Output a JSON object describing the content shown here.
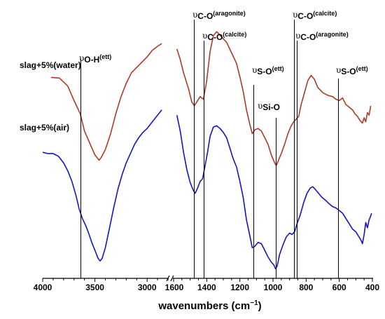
{
  "chart_data": {
    "type": "line",
    "title": "",
    "xlabel": "wavenumbers (cm⁻¹)",
    "xlabel_base": "wavenumbers (cm",
    "xlabel_exp": "−1",
    "xlabel_close": ")",
    "ylabel": "",
    "x_axis": {
      "reversed": true,
      "broken": true,
      "segments": [
        {
          "xlim": [
            4000,
            2800
          ],
          "ticks": [
            "4000",
            "3500",
            "3000"
          ]
        },
        {
          "xlim": [
            1600,
            400
          ],
          "ticks": [
            "1600",
            "1400",
            "1200",
            "1000",
            "800",
            "600",
            "400"
          ]
        }
      ]
    },
    "y_axis": {
      "shown": false,
      "units": "arbitrary (offset)"
    },
    "grid": false,
    "legend": "none",
    "series": [
      {
        "name": "slag+5%(water)",
        "color": "#b03a26",
        "points": [
          [
            3920,
            -0.55
          ],
          [
            3840,
            -0.6
          ],
          [
            3760,
            -1.2
          ],
          [
            3700,
            -2.3
          ],
          [
            3640,
            -3.3
          ],
          [
            3600,
            -4.6
          ],
          [
            3550,
            -5.5
          ],
          [
            3500,
            -6.4
          ],
          [
            3460,
            -6.8
          ],
          [
            3440,
            -6.6
          ],
          [
            3400,
            -6.0
          ],
          [
            3350,
            -4.8
          ],
          [
            3300,
            -3.3
          ],
          [
            3250,
            -2.0
          ],
          [
            3200,
            -1.0
          ],
          [
            3150,
            -0.2
          ],
          [
            3100,
            0.2
          ],
          [
            3050,
            0.6
          ],
          [
            3000,
            1.0
          ],
          [
            2950,
            1.5
          ],
          [
            2900,
            1.8
          ],
          [
            2860,
            2.0
          ],
          [
            1580,
            1.6
          ],
          [
            1560,
            0.8
          ],
          [
            1540,
            -0.2
          ],
          [
            1510,
            -1.4
          ],
          [
            1490,
            -2.4
          ],
          [
            1475,
            -2.7
          ],
          [
            1460,
            -2.4
          ],
          [
            1440,
            -2.0
          ],
          [
            1420,
            -2.2
          ],
          [
            1400,
            -0.8
          ],
          [
            1380,
            1.4
          ],
          [
            1360,
            2.6
          ],
          [
            1340,
            2.9
          ],
          [
            1310,
            2.5
          ],
          [
            1280,
            2.1
          ],
          [
            1250,
            1.3
          ],
          [
            1220,
            0.5
          ],
          [
            1200,
            -0.5
          ],
          [
            1180,
            -1.6
          ],
          [
            1160,
            -3.0
          ],
          [
            1140,
            -4.1
          ],
          [
            1125,
            -4.8
          ],
          [
            1110,
            -4.5
          ],
          [
            1090,
            -4.4
          ],
          [
            1070,
            -4.6
          ],
          [
            1050,
            -5.1
          ],
          [
            1030,
            -5.6
          ],
          [
            1010,
            -6.4
          ],
          [
            990,
            -7.0
          ],
          [
            980,
            -7.2
          ],
          [
            970,
            -6.9
          ],
          [
            950,
            -6.3
          ],
          [
            930,
            -5.6
          ],
          [
            910,
            -4.8
          ],
          [
            890,
            -4.2
          ],
          [
            875,
            -3.9
          ],
          [
            860,
            -3.7
          ],
          [
            845,
            -3.5
          ],
          [
            830,
            -2.6
          ],
          [
            810,
            -1.7
          ],
          [
            790,
            -0.8
          ],
          [
            770,
            -0.4
          ],
          [
            750,
            -0.7
          ],
          [
            730,
            -1.3
          ],
          [
            700,
            -1.7
          ],
          [
            670,
            -1.9
          ],
          [
            640,
            -2.0
          ],
          [
            620,
            -2.2
          ],
          [
            600,
            -2.3
          ],
          [
            580,
            -2.1
          ],
          [
            560,
            -2.6
          ],
          [
            540,
            -2.8
          ],
          [
            520,
            -3.0
          ],
          [
            505,
            -3.3
          ],
          [
            490,
            -3.5
          ],
          [
            475,
            -3.8
          ],
          [
            460,
            -4.0
          ],
          [
            450,
            -3.6
          ],
          [
            440,
            -3.9
          ],
          [
            430,
            -3.2
          ],
          [
            420,
            -3.4
          ],
          [
            410,
            -2.7
          ]
        ]
      },
      {
        "name": "slag+5%(air)",
        "color": "#1414c8",
        "points": [
          [
            4000,
            -6.2
          ],
          [
            3950,
            -6.3
          ],
          [
            3900,
            -6.3
          ],
          [
            3850,
            -6.5
          ],
          [
            3800,
            -7.0
          ],
          [
            3760,
            -7.6
          ],
          [
            3720,
            -8.4
          ],
          [
            3680,
            -9.5
          ],
          [
            3650,
            -10.5
          ],
          [
            3620,
            -11.2
          ],
          [
            3590,
            -11.7
          ],
          [
            3560,
            -12.3
          ],
          [
            3530,
            -13.0
          ],
          [
            3500,
            -13.6
          ],
          [
            3470,
            -14.2
          ],
          [
            3450,
            -14.4
          ],
          [
            3430,
            -14.2
          ],
          [
            3400,
            -13.4
          ],
          [
            3360,
            -11.9
          ],
          [
            3320,
            -10.4
          ],
          [
            3280,
            -9.0
          ],
          [
            3240,
            -7.9
          ],
          [
            3200,
            -7.0
          ],
          [
            3160,
            -6.3
          ],
          [
            3120,
            -5.6
          ],
          [
            3080,
            -5.1
          ],
          [
            3040,
            -4.7
          ],
          [
            3000,
            -4.4
          ],
          [
            2960,
            -4.0
          ],
          [
            2920,
            -3.6
          ],
          [
            2880,
            -3.2
          ],
          [
            2860,
            -3.0
          ],
          [
            1580,
            -3.4
          ],
          [
            1560,
            -4.6
          ],
          [
            1540,
            -6.2
          ],
          [
            1520,
            -7.5
          ],
          [
            1500,
            -8.5
          ],
          [
            1480,
            -9.1
          ],
          [
            1470,
            -9.3
          ],
          [
            1455,
            -8.9
          ],
          [
            1440,
            -8.4
          ],
          [
            1425,
            -8.2
          ],
          [
            1410,
            -7.2
          ],
          [
            1395,
            -6.2
          ],
          [
            1380,
            -5.0
          ],
          [
            1360,
            -4.3
          ],
          [
            1340,
            -4.2
          ],
          [
            1320,
            -4.4
          ],
          [
            1300,
            -4.7
          ],
          [
            1280,
            -5.1
          ],
          [
            1260,
            -5.9
          ],
          [
            1240,
            -6.7
          ],
          [
            1220,
            -7.3
          ],
          [
            1200,
            -8.4
          ],
          [
            1180,
            -9.6
          ],
          [
            1160,
            -11.3
          ],
          [
            1140,
            -12.5
          ],
          [
            1125,
            -13.4
          ],
          [
            1110,
            -13.3
          ],
          [
            1090,
            -13.0
          ],
          [
            1070,
            -13.1
          ],
          [
            1050,
            -13.6
          ],
          [
            1030,
            -14.1
          ],
          [
            1010,
            -14.5
          ],
          [
            995,
            -14.7
          ],
          [
            985,
            -15.0
          ],
          [
            975,
            -14.8
          ],
          [
            960,
            -13.9
          ],
          [
            940,
            -13.2
          ],
          [
            920,
            -12.6
          ],
          [
            900,
            -12.3
          ],
          [
            885,
            -12.4
          ],
          [
            870,
            -12.2
          ],
          [
            855,
            -11.6
          ],
          [
            835,
            -10.9
          ],
          [
            815,
            -10.0
          ],
          [
            795,
            -9.3
          ],
          [
            775,
            -8.9
          ],
          [
            760,
            -8.8
          ],
          [
            745,
            -9.0
          ],
          [
            725,
            -9.3
          ],
          [
            705,
            -9.6
          ],
          [
            685,
            -9.8
          ],
          [
            660,
            -10.1
          ],
          [
            640,
            -10.3
          ],
          [
            620,
            -10.4
          ],
          [
            600,
            -10.6
          ],
          [
            580,
            -10.8
          ],
          [
            560,
            -11.2
          ],
          [
            540,
            -11.6
          ],
          [
            520,
            -12.0
          ],
          [
            500,
            -12.2
          ],
          [
            485,
            -12.5
          ],
          [
            470,
            -12.8
          ],
          [
            460,
            -13.1
          ],
          [
            450,
            -12.4
          ],
          [
            440,
            -11.5
          ],
          [
            430,
            -11.9
          ],
          [
            420,
            -11.3
          ],
          [
            410,
            -11.0
          ],
          [
            405,
            -10.8
          ]
        ]
      }
    ],
    "annotations": [
      {
        "x": 3640,
        "prefix": "υ",
        "main": "O-H",
        "sub": "(ett)"
      },
      {
        "x": 1478,
        "prefix": "υ",
        "main": "C-O",
        "sub": "(aragonite)"
      },
      {
        "x": 1420,
        "prefix": "υ",
        "main": "C-O",
        "sub": "(calcite)"
      },
      {
        "x": 1118,
        "prefix": "υ",
        "main": "S-O",
        "sub": "(ett)"
      },
      {
        "x": 985,
        "prefix": "υ",
        "main": "Si-O",
        "sub": ""
      },
      {
        "x": 875,
        "prefix": "υ",
        "main": "C-O",
        "sub": "(calcite)"
      },
      {
        "x": 855,
        "prefix": "υ",
        "main": "C-O",
        "sub": "(aragonite)"
      },
      {
        "x": 608,
        "prefix": "υ",
        "main": "S-O",
        "sub": "(ett)"
      }
    ]
  }
}
